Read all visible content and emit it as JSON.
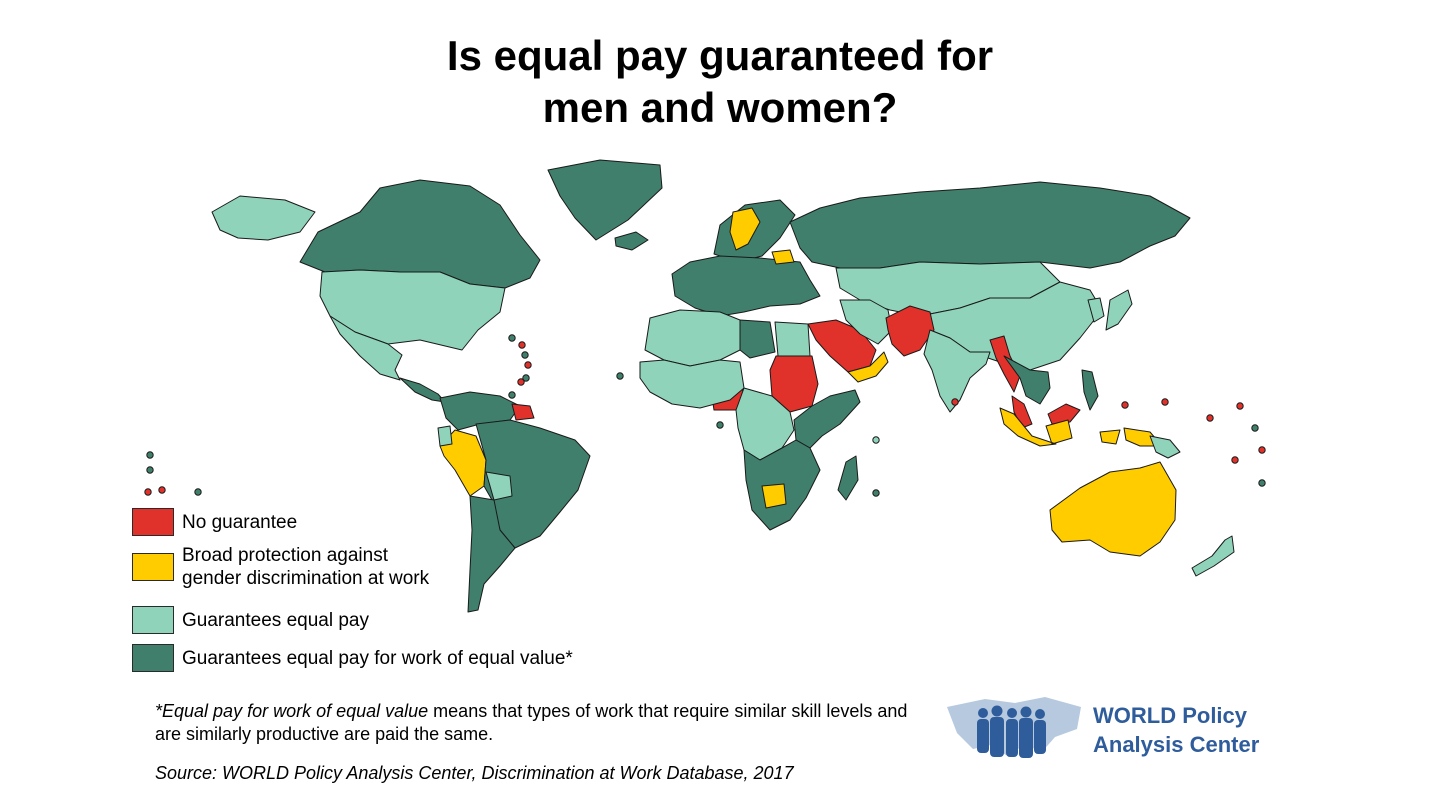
{
  "title": {
    "line1": "Is equal pay guaranteed for",
    "line2": "men and women?"
  },
  "colors": {
    "no_guarantee": "#e0312a",
    "broad_protection": "#ffcc00",
    "equal_pay": "#8fd3bb",
    "equal_value": "#3f7f6b",
    "outline": "#1a1a1a",
    "logo_blue": "#2f5d9c",
    "logo_map": "#a9bfd8"
  },
  "legend": [
    {
      "key": "no_guarantee",
      "label": "No guarantee"
    },
    {
      "key": "broad_protection",
      "label_line1": "Broad protection against",
      "label_line2": "gender discrimination at work"
    },
    {
      "key": "equal_pay",
      "label": "Guarantees equal pay"
    },
    {
      "key": "equal_value",
      "label": "Guarantees equal pay for work of equal value*"
    }
  ],
  "footnote": {
    "emphasis": "*Equal pay for work of equal value",
    "rest": " means that types of work that require similar skill levels and are similarly productive are paid the same."
  },
  "source": "Source: WORLD Policy Analysis Center, Discrimination at Work Database, 2017",
  "logo": {
    "line1": "WORLD Policy",
    "line2": "Analysis Center"
  },
  "map_regions": [
    {
      "name": "Canada",
      "category": "equal_value"
    },
    {
      "name": "Alaska",
      "category": "equal_pay"
    },
    {
      "name": "Greenland",
      "category": "equal_value"
    },
    {
      "name": "United States",
      "category": "equal_pay"
    },
    {
      "name": "Mexico",
      "category": "equal_pay"
    },
    {
      "name": "Central America",
      "category": "equal_value"
    },
    {
      "name": "Colombia / Venezuela",
      "category": "equal_value"
    },
    {
      "name": "Guyana",
      "category": "no_guarantee"
    },
    {
      "name": "Peru",
      "category": "broad_protection"
    },
    {
      "name": "Ecuador",
      "category": "equal_pay"
    },
    {
      "name": "Brazil",
      "category": "equal_value"
    },
    {
      "name": "Bolivia",
      "category": "equal_pay"
    },
    {
      "name": "Southern Cone",
      "category": "equal_value"
    },
    {
      "name": "Iceland",
      "category": "equal_value"
    },
    {
      "name": "Scandinavia",
      "category": "equal_value"
    },
    {
      "name": "Sweden",
      "category": "broad_protection"
    },
    {
      "name": "Europe",
      "category": "equal_value"
    },
    {
      "name": "Belarus",
      "category": "broad_protection"
    },
    {
      "name": "Russia",
      "category": "equal_value"
    },
    {
      "name": "Central Asia / Mongolia",
      "category": "equal_pay"
    },
    {
      "name": "China",
      "category": "equal_pay"
    },
    {
      "name": "Korea / Japan",
      "category": "equal_pay"
    },
    {
      "name": "Saudi Arabia",
      "category": "no_guarantee"
    },
    {
      "name": "Oman / Yemen",
      "category": "broad_protection"
    },
    {
      "name": "Iran",
      "category": "equal_pay"
    },
    {
      "name": "Afghanistan / Pakistan",
      "category": "no_guarantee"
    },
    {
      "name": "India",
      "category": "equal_pay"
    },
    {
      "name": "Myanmar",
      "category": "no_guarantee"
    },
    {
      "name": "Southeast Asia",
      "category": "equal_value"
    },
    {
      "name": "Malaysia",
      "category": "no_guarantee"
    },
    {
      "name": "Indonesia",
      "category": "broad_protection"
    },
    {
      "name": "Philippines",
      "category": "equal_value"
    },
    {
      "name": "Papua New Guinea",
      "category": "equal_pay"
    },
    {
      "name": "Australia",
      "category": "broad_protection"
    },
    {
      "name": "New Zealand",
      "category": "equal_pay"
    },
    {
      "name": "North Africa",
      "category": "equal_pay"
    },
    {
      "name": "Libya",
      "category": "equal_value"
    },
    {
      "name": "Egypt",
      "category": "equal_pay"
    },
    {
      "name": "Sudan",
      "category": "no_guarantee"
    },
    {
      "name": "Nigeria",
      "category": "no_guarantee"
    },
    {
      "name": "West Africa",
      "category": "equal_pay"
    },
    {
      "name": "Central Africa",
      "category": "equal_pay"
    },
    {
      "name": "East Africa",
      "category": "equal_value"
    },
    {
      "name": "Southern Africa",
      "category": "equal_value"
    },
    {
      "name": "Botswana",
      "category": "broad_protection"
    },
    {
      "name": "Madagascar",
      "category": "equal_value"
    }
  ]
}
